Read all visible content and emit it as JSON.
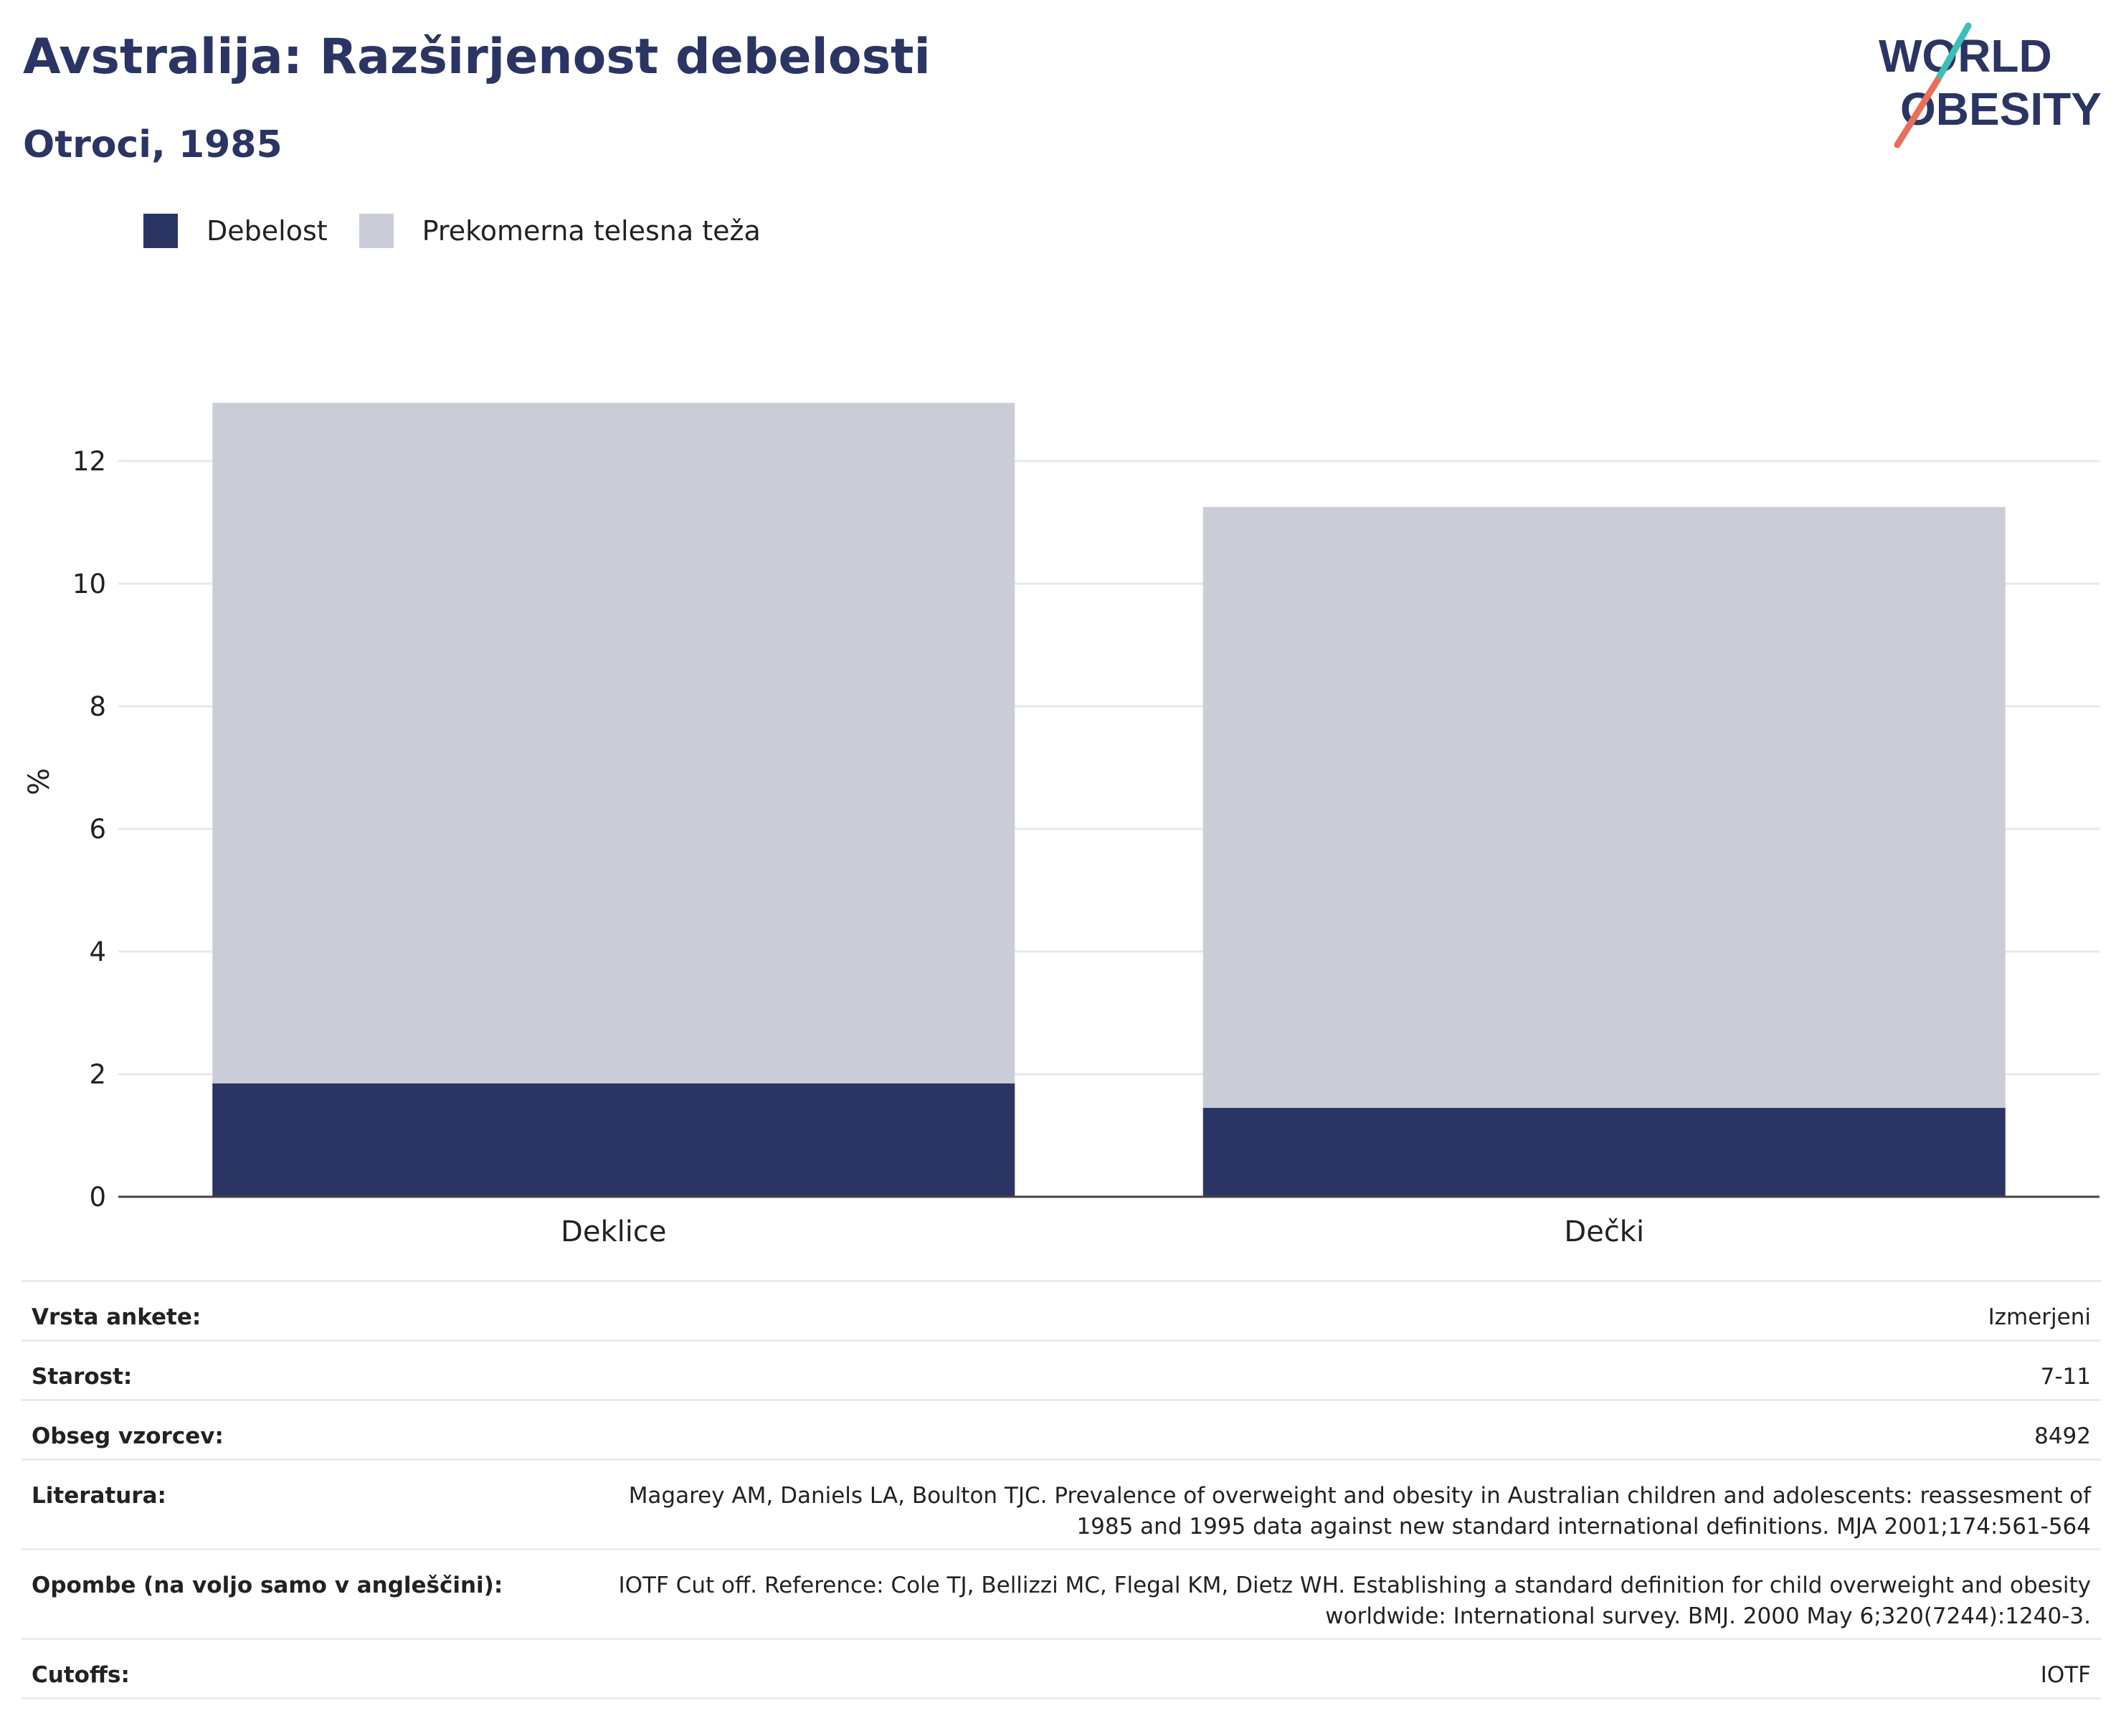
{
  "header": {
    "title": "Avstralija: Razširjenost debelosti",
    "subtitle": "Otroci, 1985",
    "logo_line1": "WORLD",
    "logo_line2": "OBESITY"
  },
  "colors": {
    "obesity": "#2a3563",
    "overweight": "#cacdd8",
    "brand_teal": "#3bbfb8",
    "brand_coral": "#e8705a"
  },
  "legend": [
    {
      "label": "Debelost",
      "color": "#2a3563"
    },
    {
      "label": "Prekomerna telesna teža",
      "color": "#cacdd8"
    }
  ],
  "chart_data": {
    "type": "bar",
    "stacked": true,
    "categories": [
      "Deklice",
      "Dečki"
    ],
    "series": [
      {
        "name": "Debelost",
        "values": [
          1.85,
          1.45
        ]
      },
      {
        "name": "Prekomerna telesna teža",
        "values": [
          11.1,
          9.8
        ]
      }
    ],
    "title": "Avstralija: Razširjenost debelosti",
    "subtitle": "Otroci, 1985",
    "xlabel": "",
    "ylabel": "%",
    "ylim": [
      0,
      13.5
    ],
    "yticks": [
      0,
      2,
      4,
      6,
      8,
      10,
      12
    ],
    "grid": true,
    "legend_position": "top-left"
  },
  "meta": [
    {
      "key": "Vrsta ankete:",
      "value": "Izmerjeni"
    },
    {
      "key": "Starost:",
      "value": "7-11"
    },
    {
      "key": "Obseg vzorcev:",
      "value": "8492"
    },
    {
      "key": "Literatura:",
      "value": "Magarey AM, Daniels LA, Boulton TJC. Prevalence of overweight and obesity in Australian children and adolescents: reassesment of 1985 and 1995 data against new standard international definitions. MJA 2001;174:561-564"
    },
    {
      "key": "Opombe (na voljo samo v angleščini):",
      "value": "IOTF Cut off. Reference: Cole TJ, Bellizzi MC, Flegal KM, Dietz WH. Establishing a standard definition for child overweight and obesity worldwide: International survey. BMJ. 2000 May 6;320(7244):1240-3."
    },
    {
      "key": "Cutoffs:",
      "value": "IOTF"
    }
  ]
}
